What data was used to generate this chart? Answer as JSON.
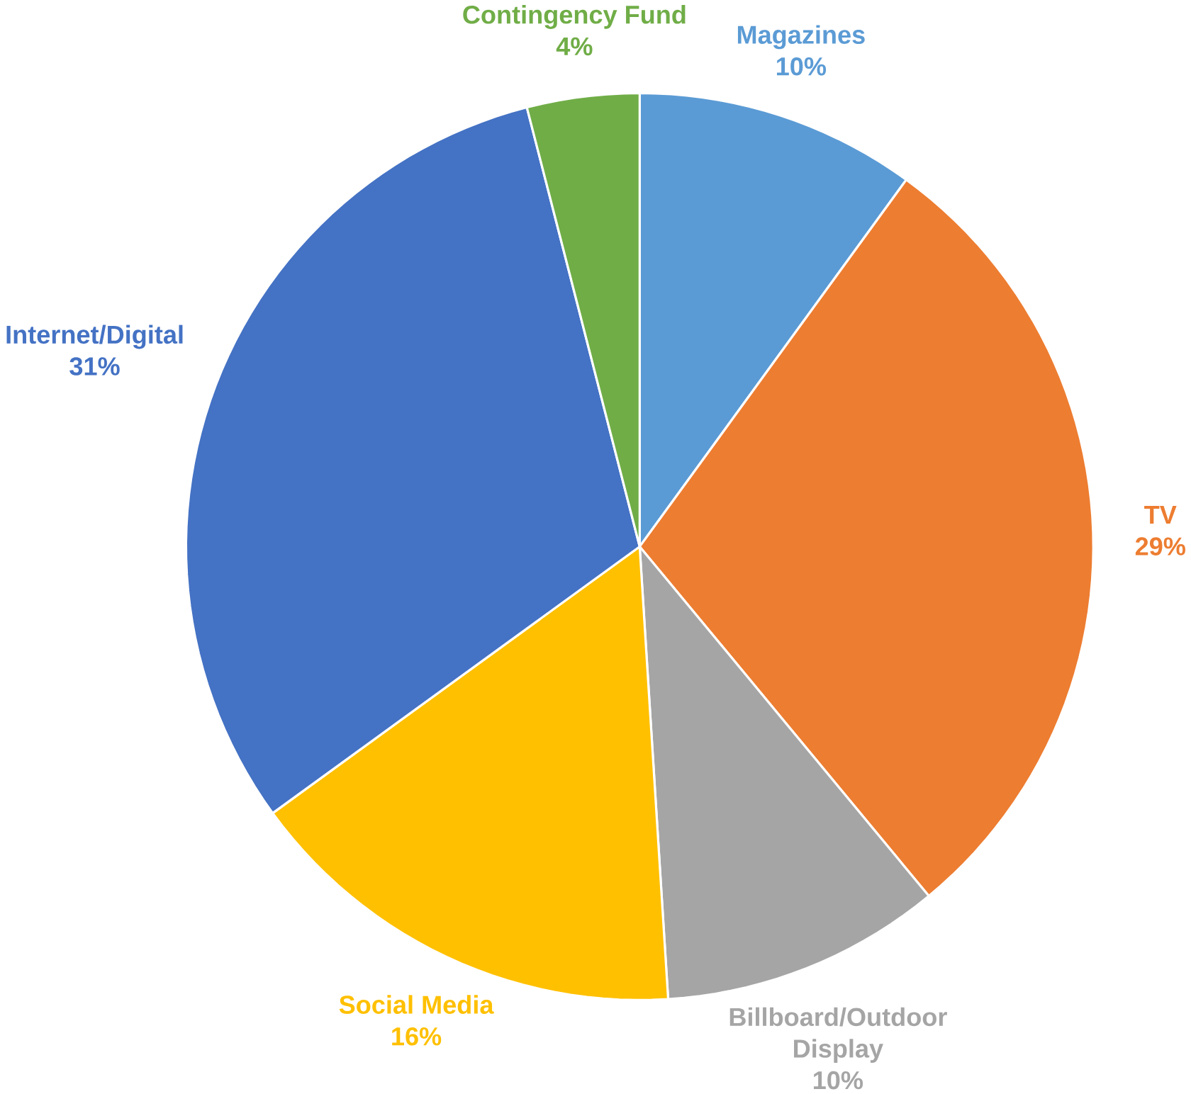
{
  "chart_data": {
    "type": "pie",
    "categories": [
      "Magazines",
      "TV",
      "Billboard/Outdoor Display",
      "Social Media",
      "Internet/Digital",
      "Contingency Fund"
    ],
    "values": [
      10,
      29,
      10,
      16,
      31,
      4
    ],
    "value_labels": [
      "10%",
      "29%",
      "10%",
      "16%",
      "31%",
      "4%"
    ],
    "colors": [
      "#5b9bd5",
      "#ed7d31",
      "#a5a5a5",
      "#ffc000",
      "#4472c4",
      "#70ad47"
    ]
  }
}
